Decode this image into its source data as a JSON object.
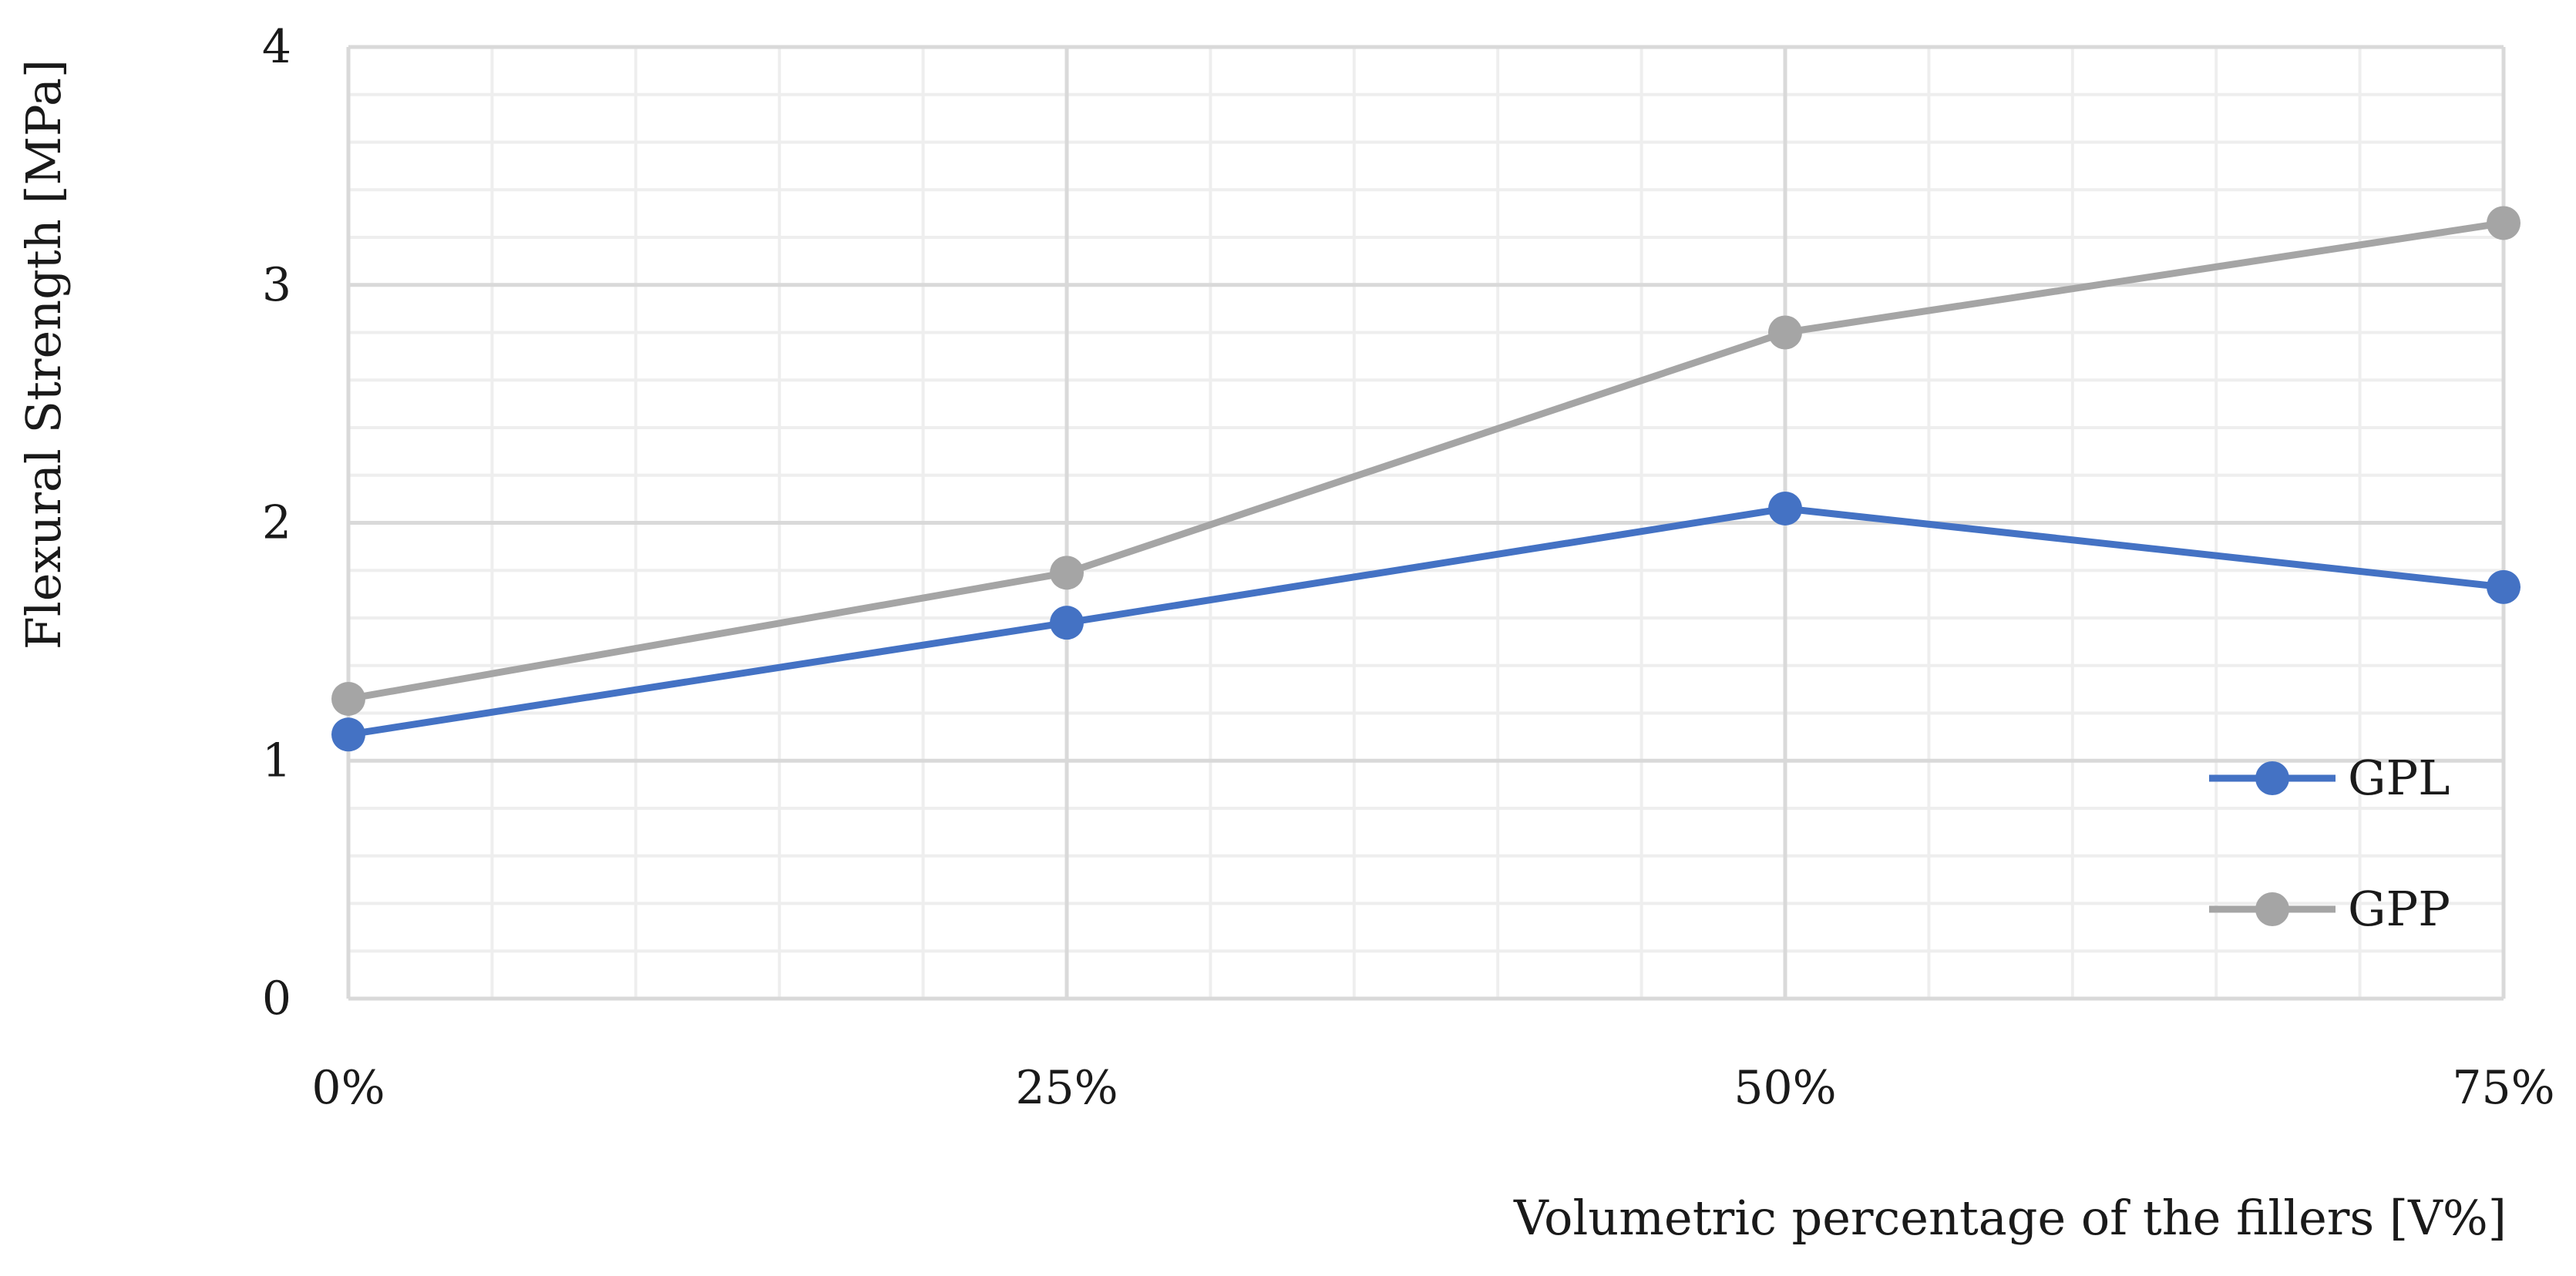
{
  "chart_data": {
    "type": "line",
    "title": "",
    "xlabel": "Volumetric percentage of the fillers [V%]",
    "ylabel": "Flexural Strength [MPa]",
    "categories": [
      "0%",
      "25%",
      "50%",
      "75%"
    ],
    "ylim": [
      0,
      4
    ],
    "yticks": [
      "0",
      "1",
      "2",
      "3",
      "4"
    ],
    "grid": "on",
    "legend_position": "bottom-right",
    "series": [
      {
        "name": "GPL",
        "color": "#4472c4",
        "values": [
          1.11,
          1.58,
          2.06,
          1.73
        ]
      },
      {
        "name": "GPP",
        "color": "#a5a5a5",
        "values": [
          1.26,
          1.79,
          2.8,
          3.26
        ]
      }
    ],
    "colors": {
      "major_grid": "#d9d9d9",
      "minor_grid": "#eeeeee"
    }
  }
}
